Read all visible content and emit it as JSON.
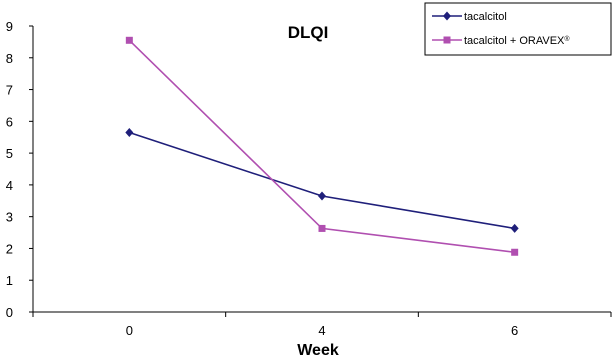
{
  "chart_data": {
    "type": "line",
    "title": "DLQI",
    "xlabel": "Week",
    "ylabel": "",
    "categories": [
      "0",
      "4",
      "6"
    ],
    "ylim": [
      0,
      9
    ],
    "yticks": [
      "0",
      "1",
      "2",
      "3",
      "4",
      "5",
      "6",
      "7",
      "8",
      "9"
    ],
    "grid": false,
    "legend_position": "top-right",
    "series": [
      {
        "name": "tacalcitol",
        "values": [
          5.65,
          3.65,
          2.63
        ],
        "color": "#1f1f7a",
        "marker": "diamond"
      },
      {
        "name": "tacalcitol + ORAVEX",
        "name_suffix": "®",
        "values": [
          8.55,
          2.63,
          1.88
        ],
        "color": "#b04fb0",
        "marker": "square"
      }
    ]
  }
}
